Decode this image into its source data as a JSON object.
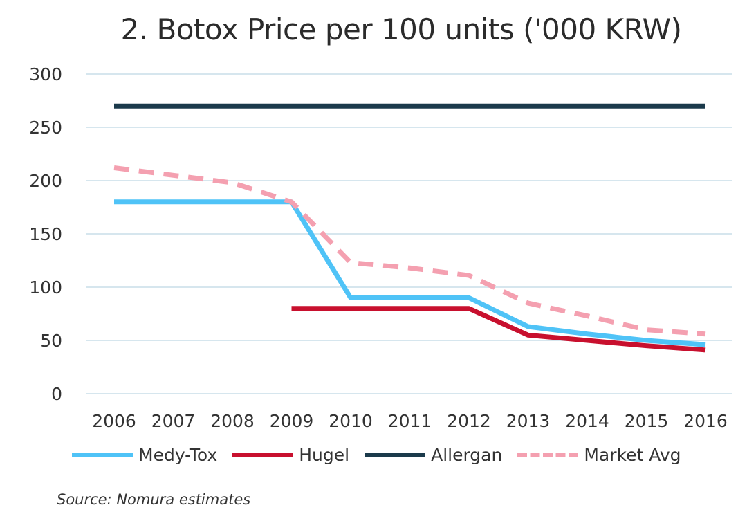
{
  "chart_data": {
    "type": "line",
    "title": "2. Botox Price per 100 units ('000 KRW)",
    "xlabel": "",
    "ylabel": "",
    "x": [
      "2006",
      "2007",
      "2008",
      "2009",
      "2010",
      "2011",
      "2012",
      "2013",
      "2014",
      "2015",
      "2016"
    ],
    "ylim": [
      0,
      300
    ],
    "yticks": [
      0,
      50,
      100,
      150,
      200,
      250,
      300
    ],
    "grid": true,
    "legend": "bottom",
    "series": [
      {
        "name": "Medy-Tox",
        "color": "#4fc3f7",
        "dash": false,
        "values": [
          180,
          180,
          180,
          180,
          90,
          90,
          90,
          63,
          56,
          50,
          46
        ]
      },
      {
        "name": "Hugel",
        "color": "#c8102e",
        "dash": false,
        "values": [
          null,
          null,
          null,
          80,
          80,
          80,
          80,
          55,
          50,
          45,
          41
        ]
      },
      {
        "name": "Allergan",
        "color": "#1b3a4b",
        "dash": false,
        "values": [
          270,
          270,
          270,
          270,
          270,
          270,
          270,
          270,
          270,
          270,
          270
        ]
      },
      {
        "name": "Market Avg",
        "color": "#f4a0b0",
        "dash": true,
        "values": [
          212,
          205,
          198,
          180,
          123,
          118,
          111,
          85,
          73,
          60,
          56
        ]
      }
    ],
    "source": "Source: Nomura estimates"
  }
}
